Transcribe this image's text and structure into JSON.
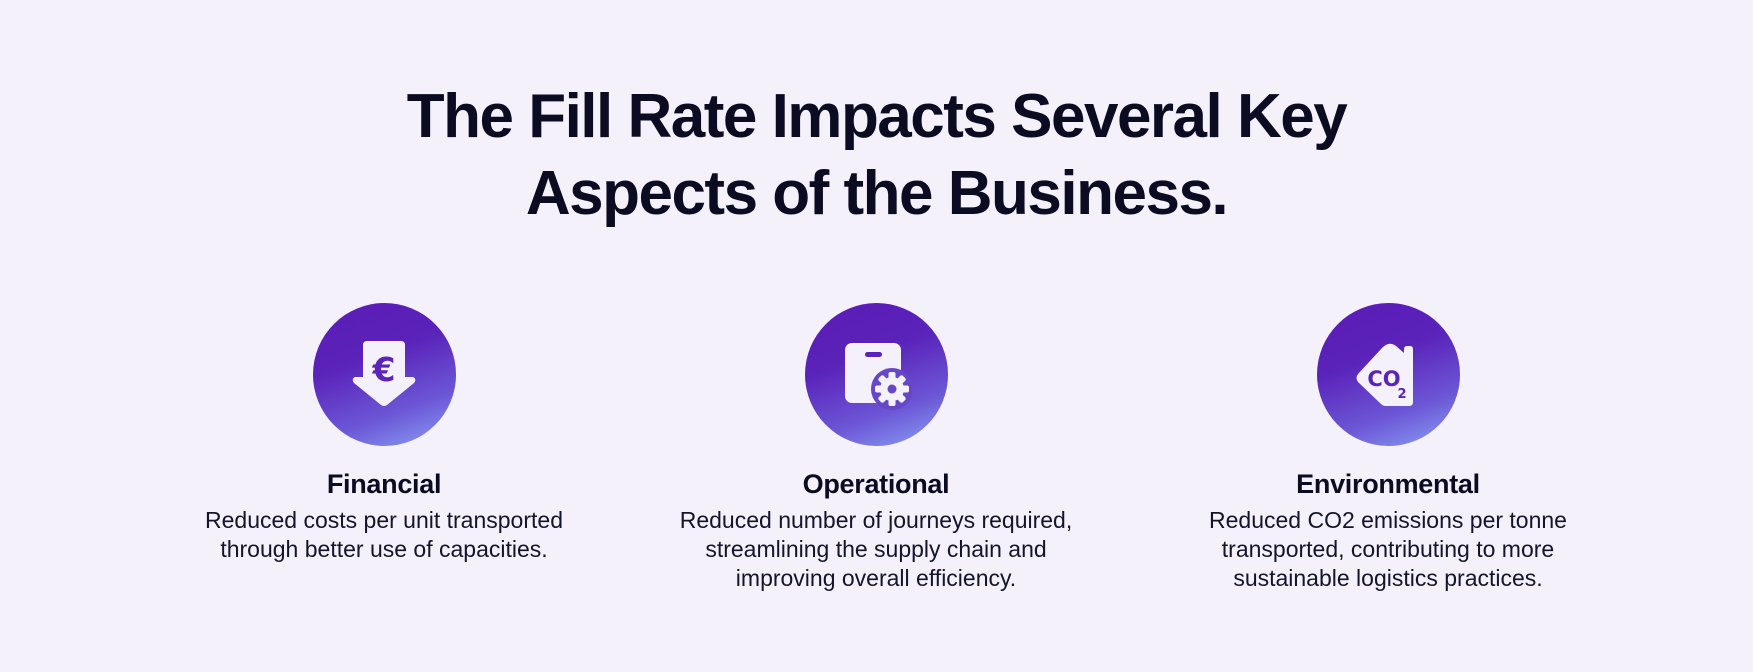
{
  "headline": {
    "line1": "The Fill Rate Impacts Several Key",
    "line2": "Aspects of the Business."
  },
  "colors": {
    "background": "#f4f1fb",
    "badge_top": "#5b1bb6",
    "badge_bottom": "#8aa3f5",
    "text": "#0b0b22"
  },
  "features": [
    {
      "icon": "euro-tag-icon",
      "icon_glyph": "€",
      "title": "Financial",
      "description": "Reduced costs per unit transported through better use of capacities."
    },
    {
      "icon": "box-gear-icon",
      "title": "Operational",
      "description": "Reduced number of journeys required, streamlining the supply chain and improving overall efficiency."
    },
    {
      "icon": "co2-house-icon",
      "icon_glyph": "CO",
      "icon_subscript": "2",
      "title": "Environmental",
      "description": "Reduced CO2 emissions per tonne transported, contributing to more sustainable logistics practices."
    }
  ]
}
